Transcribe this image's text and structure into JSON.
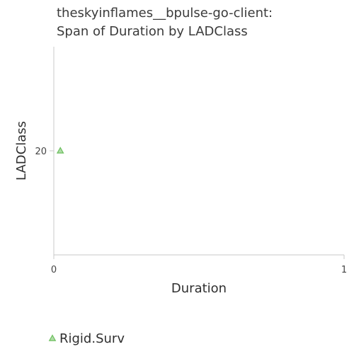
{
  "chart_data": {
    "type": "scatter",
    "title_lines": [
      "theskyinflames__bpulse-go-client:",
      "Span of Duration by LADClass"
    ],
    "xlabel": "Duration",
    "ylabel": "LADClass",
    "xlim": [
      0,
      1
    ],
    "ylim": [
      0,
      40
    ],
    "x_ticks": [
      0,
      1
    ],
    "y_ticks": [
      20
    ],
    "grid": false,
    "legend_position": "bottom-left",
    "marker": "triangle",
    "series": [
      {
        "name": "Rigid.Surv",
        "color": "#6dbf5e",
        "points": [
          {
            "x": 0.02,
            "y": 20
          }
        ]
      }
    ]
  }
}
